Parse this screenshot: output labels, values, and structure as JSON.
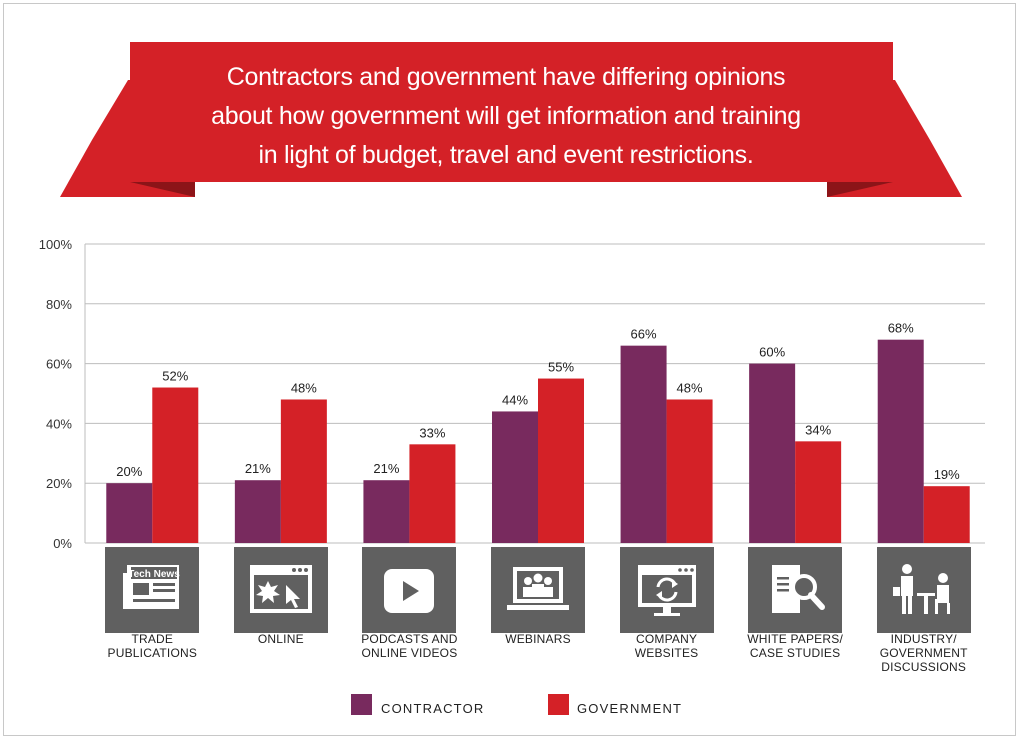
{
  "title_lines": [
    "Contractors and government have differing opinions",
    "about how government will get information and training",
    "in light of budget, travel and event restrictions."
  ],
  "colors": {
    "contractor": "#782A5E",
    "government": "#D42127",
    "banner": "#D42127",
    "banner_dark": "#8C1418",
    "icon_bg": "#606060"
  },
  "chart_data": {
    "type": "bar",
    "categories": [
      "TRADE PUBLICATIONS",
      "ONLINE",
      "PODCASTS AND ONLINE VIDEOS",
      "WEBINARS",
      "COMPANY WEBSITES",
      "WHITE PAPERS/ CASE STUDIES",
      "INDUSTRY/ GOVERNMENT DISCUSSIONS"
    ],
    "category_label_lines": [
      [
        "TRADE",
        "PUBLICATIONS"
      ],
      [
        "ONLINE"
      ],
      [
        "PODCASTS AND",
        "ONLINE VIDEOS"
      ],
      [
        "WEBINARS"
      ],
      [
        "COMPANY",
        "WEBSITES"
      ],
      [
        "WHITE PAPERS/",
        "CASE STUDIES"
      ],
      [
        "INDUSTRY/",
        "GOVERNMENT",
        "DISCUSSIONS"
      ]
    ],
    "category_icons": [
      "newspaper-icon",
      "browser-cursor-icon",
      "video-play-icon",
      "webinar-laptop-icon",
      "refresh-monitor-icon",
      "document-magnifier-icon",
      "meeting-people-icon"
    ],
    "newspaper_icon_text": "Tech News",
    "series": [
      {
        "name": "CONTRACTOR",
        "values": [
          20,
          21,
          21,
          44,
          66,
          60,
          68
        ]
      },
      {
        "name": "GOVERNMENT",
        "values": [
          52,
          48,
          33,
          55,
          48,
          34,
          19
        ]
      }
    ],
    "data_labels": [
      [
        "20%",
        "21%",
        "21%",
        "44%",
        "66%",
        "60%",
        "68%"
      ],
      [
        "52%",
        "48%",
        "33%",
        "55%",
        "48%",
        "34%",
        "19%"
      ]
    ],
    "yticks": [
      0,
      20,
      40,
      60,
      80,
      100
    ],
    "ytick_labels": [
      "0%",
      "20%",
      "40%",
      "60%",
      "80%",
      "100%"
    ],
    "ylim": [
      0,
      100
    ],
    "grid": true,
    "legend_placement": "bottom-center"
  }
}
